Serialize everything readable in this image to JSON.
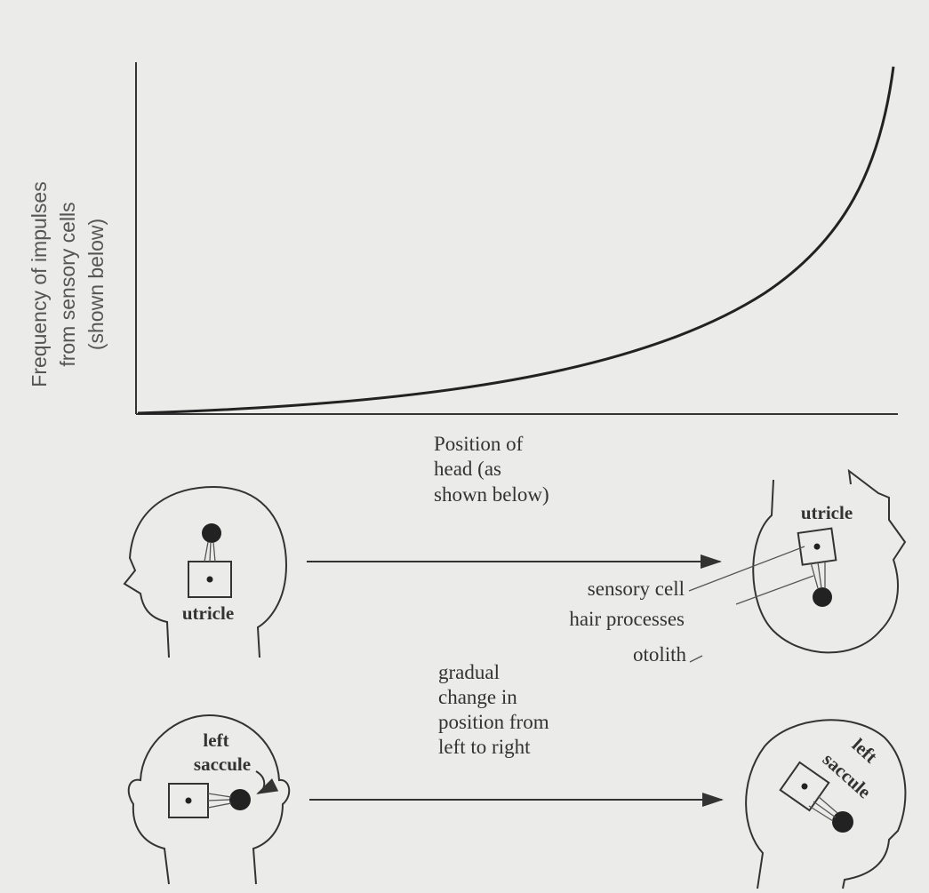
{
  "graph": {
    "y_axis_label": [
      "Frequency of impulses",
      "from sensory cells",
      "(shown below)"
    ],
    "x_axis_label": [
      "Position of",
      "head (as",
      "shown below)"
    ]
  },
  "utricle_row": {
    "left_label": "utricle",
    "right_label": "utricle"
  },
  "labels": {
    "sensory_cell": "sensory cell",
    "hair_processes": "hair processes",
    "otolith": "otolith"
  },
  "caption": [
    "gradual",
    "change in",
    "position from",
    "left to right"
  ],
  "saccule_row": {
    "left_label": [
      "left",
      "saccule"
    ],
    "right_label": [
      "left",
      "saccule"
    ]
  }
}
